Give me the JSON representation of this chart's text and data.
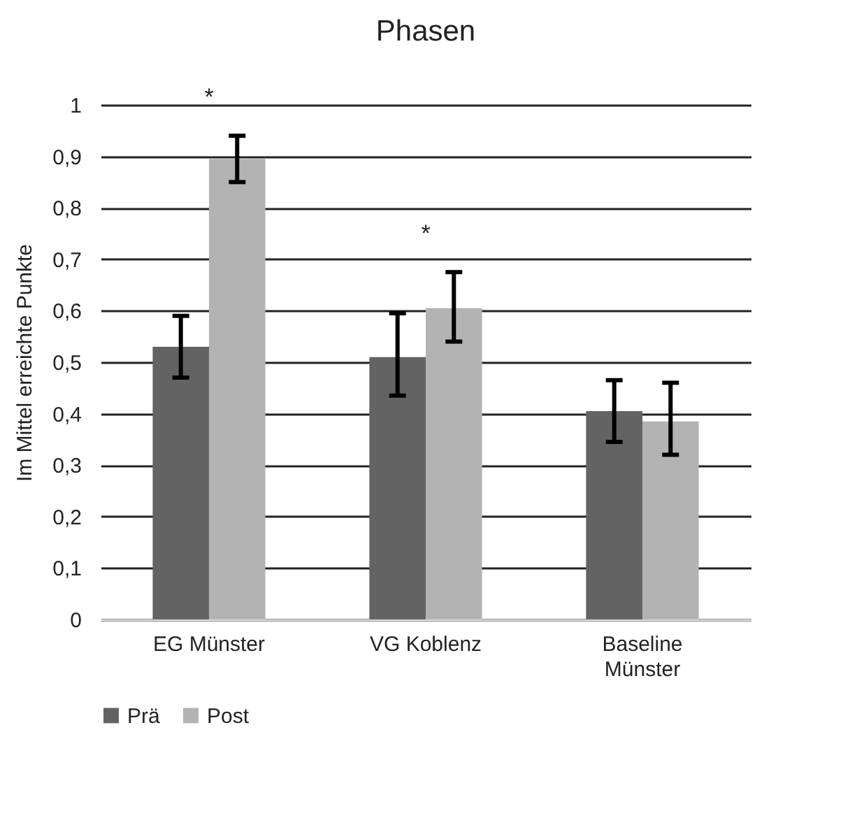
{
  "chart_data": {
    "type": "bar",
    "title": "Phasen",
    "ylabel": "Im Mittel erreichte Punkte",
    "categories": [
      "EG Münster",
      "VG Koblenz",
      "Baseline Münster"
    ],
    "series": [
      {
        "name": "Prä",
        "color": "#636363",
        "values": [
          0.53,
          0.51,
          0.405
        ],
        "errors": [
          [
            0.47,
            0.59
          ],
          [
            0.435,
            0.595
          ],
          [
            0.345,
            0.465
          ]
        ]
      },
      {
        "name": "Post",
        "color": "#b3b3b3",
        "values": [
          0.895,
          0.605,
          0.385
        ],
        "errors": [
          [
            0.85,
            0.94
          ],
          [
            0.54,
            0.675
          ],
          [
            0.32,
            0.46
          ]
        ]
      }
    ],
    "annotations": [
      "*",
      "*"
    ],
    "ylim": [
      0,
      1
    ],
    "yticks": [
      0,
      {
        "value": 0.1,
        "label": "0,1"
      },
      {
        "value": 0.2,
        "label": "0,2"
      },
      {
        "value": 0.3,
        "label": "0,3"
      },
      {
        "value": 0.4,
        "label": "0,4"
      },
      {
        "value": 0.5,
        "label": "0,5"
      },
      {
        "value": 0.6,
        "label": "0,6"
      },
      {
        "value": 0.7,
        "label": "0,7"
      },
      {
        "value": 0.8,
        "label": "0,8"
      },
      {
        "value": 0.9,
        "label": "0,9"
      },
      1
    ],
    "grid": "y",
    "legend": "bottom"
  }
}
